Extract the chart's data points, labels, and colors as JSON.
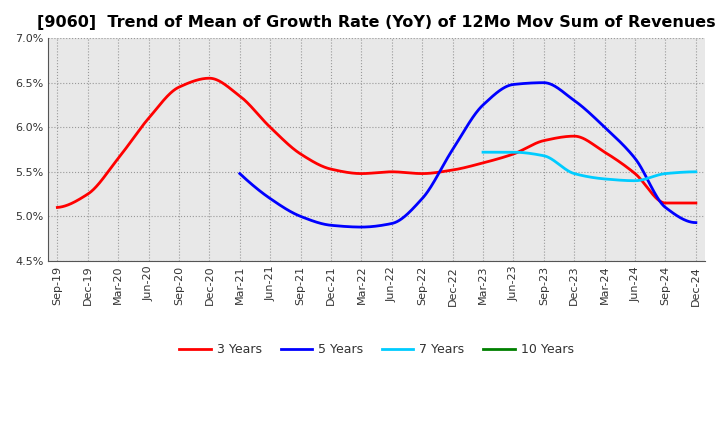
{
  "title": "[9060]  Trend of Mean of Growth Rate (YoY) of 12Mo Mov Sum of Revenues",
  "ylim": [
    0.045,
    0.07
  ],
  "yticks": [
    0.045,
    0.05,
    0.055,
    0.06,
    0.065,
    0.07
  ],
  "ytick_labels": [
    "4.5%",
    "5.0%",
    "5.5%",
    "6.0%",
    "6.5%",
    "7.0%"
  ],
  "x_labels": [
    "Sep-19",
    "Dec-19",
    "Mar-20",
    "Jun-20",
    "Sep-20",
    "Dec-20",
    "Mar-21",
    "Jun-21",
    "Sep-21",
    "Dec-21",
    "Mar-22",
    "Jun-22",
    "Sep-22",
    "Dec-22",
    "Mar-23",
    "Jun-23",
    "Sep-23",
    "Dec-23",
    "Mar-24",
    "Jun-24",
    "Sep-24",
    "Dec-24"
  ],
  "line_3y_color": "#FF0000",
  "line_5y_color": "#0000FF",
  "line_7y_color": "#00CCFF",
  "line_10y_color": "#008000",
  "line_width": 2.0,
  "background_color": "#FFFFFF",
  "plot_bg_color": "#E8E8E8",
  "grid_color": "#999999",
  "legend_labels": [
    "3 Years",
    "5 Years",
    "7 Years",
    "10 Years"
  ],
  "title_fontsize": 11.5,
  "tick_fontsize": 8,
  "cp3_x": [
    0,
    1,
    2,
    3,
    4,
    5,
    6,
    7,
    8,
    9,
    10,
    11,
    12,
    13,
    14,
    15,
    16,
    17,
    18,
    19,
    20,
    21
  ],
  "cp3_y": [
    0.051,
    0.0525,
    0.0565,
    0.061,
    0.0645,
    0.0655,
    0.0635,
    0.06,
    0.057,
    0.0553,
    0.0548,
    0.055,
    0.0548,
    0.0552,
    0.056,
    0.057,
    0.0585,
    0.059,
    0.0572,
    0.0548,
    0.0515,
    0.0515
  ],
  "cp5_x": [
    6,
    7,
    8,
    9,
    10,
    11,
    12,
    13,
    14,
    15,
    16,
    17,
    18,
    19,
    20,
    21
  ],
  "cp5_y": [
    0.0548,
    0.052,
    0.05,
    0.049,
    0.0488,
    0.0492,
    0.052,
    0.0575,
    0.0625,
    0.0648,
    0.065,
    0.063,
    0.06,
    0.0565,
    0.051,
    0.0493
  ],
  "cp7_x": [
    14,
    15,
    16,
    17,
    18,
    19,
    20,
    21
  ],
  "cp7_y": [
    0.0572,
    0.0572,
    0.0568,
    0.0548,
    0.0542,
    0.054,
    0.0548,
    0.055
  ]
}
